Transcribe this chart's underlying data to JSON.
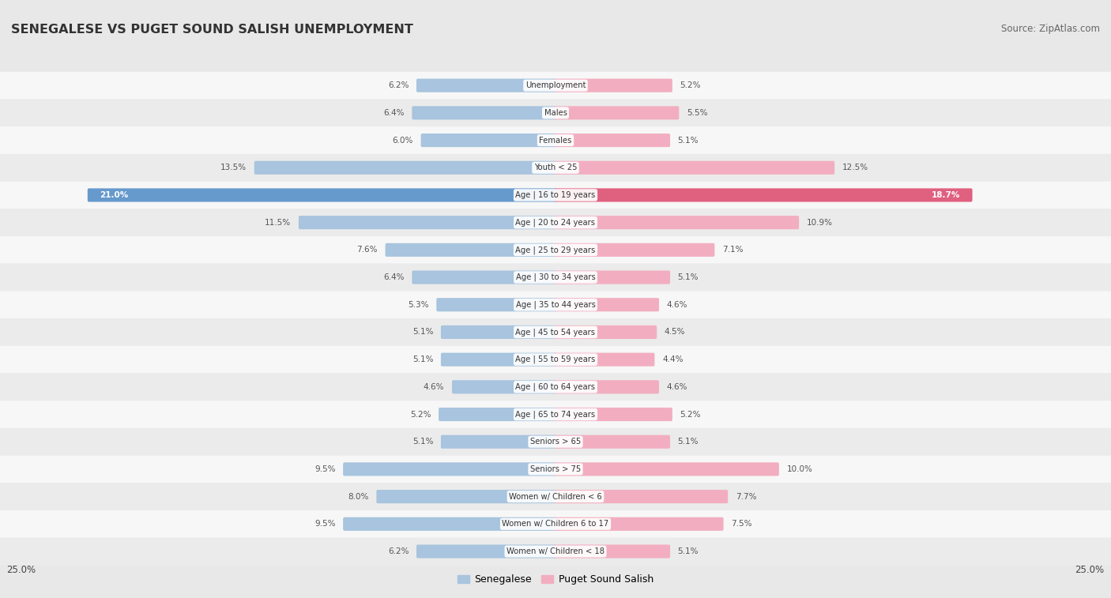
{
  "title": "SENEGALESE VS PUGET SOUND SALISH UNEMPLOYMENT",
  "source": "Source: ZipAtlas.com",
  "categories": [
    "Unemployment",
    "Males",
    "Females",
    "Youth < 25",
    "Age | 16 to 19 years",
    "Age | 20 to 24 years",
    "Age | 25 to 29 years",
    "Age | 30 to 34 years",
    "Age | 35 to 44 years",
    "Age | 45 to 54 years",
    "Age | 55 to 59 years",
    "Age | 60 to 64 years",
    "Age | 65 to 74 years",
    "Seniors > 65",
    "Seniors > 75",
    "Women w/ Children < 6",
    "Women w/ Children 6 to 17",
    "Women w/ Children < 18"
  ],
  "left_values": [
    6.2,
    6.4,
    6.0,
    13.5,
    21.0,
    11.5,
    7.6,
    6.4,
    5.3,
    5.1,
    5.1,
    4.6,
    5.2,
    5.1,
    9.5,
    8.0,
    9.5,
    6.2
  ],
  "right_values": [
    5.2,
    5.5,
    5.1,
    12.5,
    18.7,
    10.9,
    7.1,
    5.1,
    4.6,
    4.5,
    4.4,
    4.6,
    5.2,
    5.1,
    10.0,
    7.7,
    7.5,
    5.1
  ],
  "left_color": "#a8c4de",
  "right_color": "#f2aec0",
  "bg_color": "#e8e8e8",
  "row_bg_even": "#f7f7f7",
  "row_bg_odd": "#ebebeb",
  "axis_max": 25.0,
  "left_label": "Senegalese",
  "right_label": "Puget Sound Salish",
  "highlight_row": 4,
  "highlight_left_color": "#6699cc",
  "highlight_right_color": "#e06080"
}
